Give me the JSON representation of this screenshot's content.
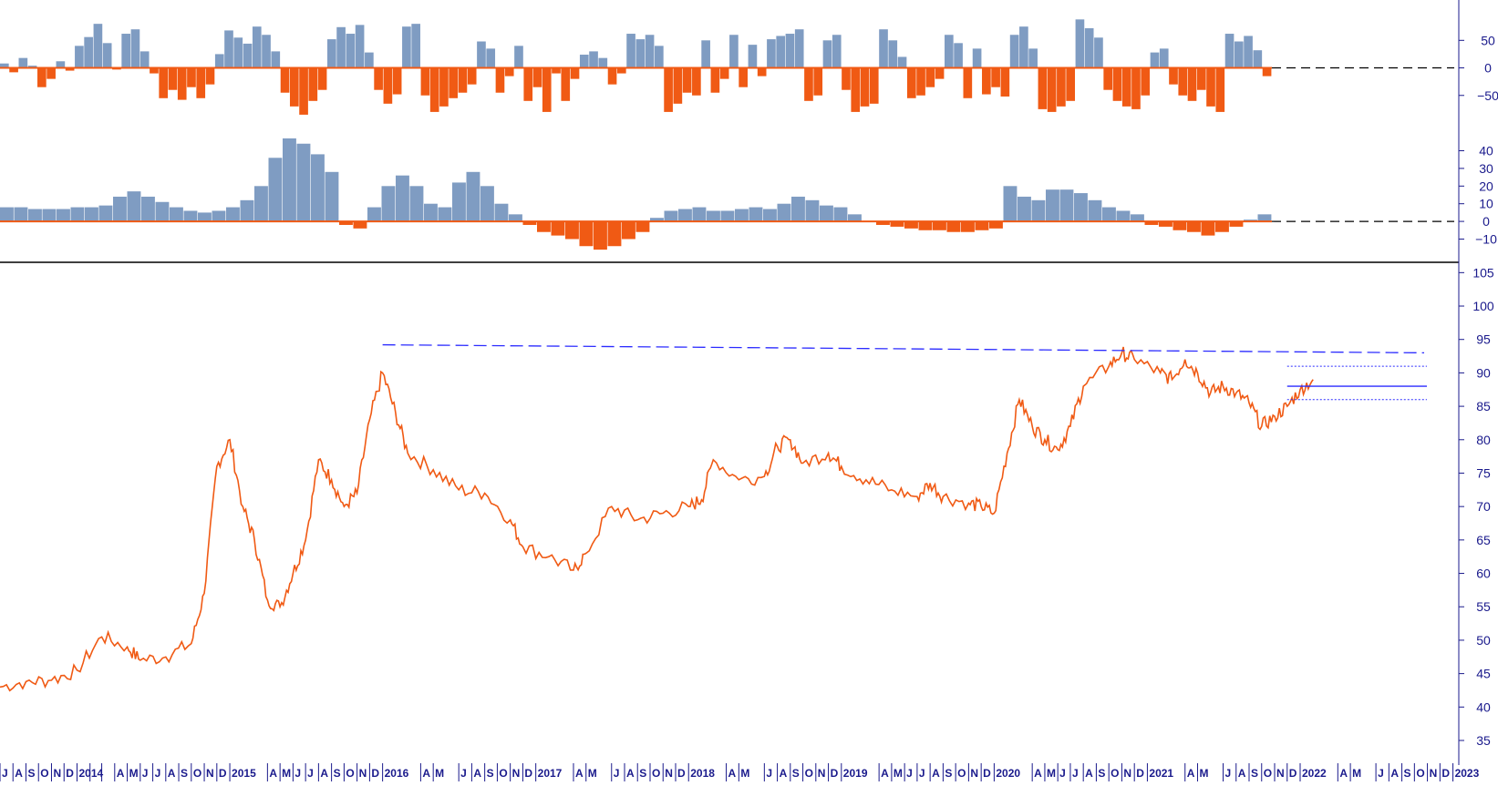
{
  "colors": {
    "positive": "#7f9cc2",
    "negative": "#f05a14",
    "price": "#f05a14",
    "axis_text": "#1a1a8c",
    "reference": "#2b2bff",
    "zero_dash": "#000000"
  },
  "chart_data": [
    {
      "type": "bar",
      "panel": "upper-oscillator",
      "ylim": [
        -100,
        115
      ],
      "yticks": [
        50,
        0,
        -50
      ],
      "tick_labels": [
        "50",
        "0",
        "−50"
      ],
      "zero_reference": 0,
      "series": [
        {
          "values": [
            8,
            -8,
            18,
            4,
            -35,
            -20,
            12,
            -5,
            40,
            56,
            80,
            45,
            -3,
            62,
            70,
            30,
            -10,
            -55,
            -40,
            -58,
            -35,
            -55,
            -30,
            25,
            68,
            55,
            44,
            75,
            60,
            30,
            -45,
            -70,
            -85,
            -60,
            -40,
            52,
            74,
            62,
            78,
            28,
            -40,
            -65,
            -48,
            75,
            80,
            -50,
            -80,
            -70,
            -55,
            -45,
            -30,
            48,
            35,
            -45,
            -15,
            40,
            -60,
            -35,
            -80,
            -10,
            -60,
            -20,
            24,
            30,
            18,
            -30,
            -10,
            62,
            52,
            60,
            40,
            -80,
            -65,
            -45,
            -50,
            50,
            -45,
            -20,
            60,
            -35,
            42,
            -15,
            52,
            58,
            62,
            70,
            -60,
            -50,
            50,
            60,
            -40,
            -80,
            -70,
            -65,
            70,
            50,
            20,
            -55,
            -50,
            -35,
            -20,
            60,
            45,
            -55,
            35,
            -48,
            -35,
            -52,
            60,
            75,
            35,
            -75,
            -80,
            -70,
            -60,
            88,
            72,
            55,
            -40,
            -60,
            -70,
            -75,
            -50,
            28,
            35,
            -30,
            -50,
            -60,
            -40,
            -70,
            -80,
            62,
            48,
            58,
            32,
            -15
          ]
        }
      ]
    },
    {
      "type": "bar",
      "panel": "middle-oscillator",
      "ylim": [
        -18,
        48
      ],
      "yticks": [
        40,
        30,
        20,
        10,
        0,
        -10
      ],
      "tick_labels": [
        "40",
        "30",
        "20",
        "10",
        "0",
        "−10"
      ],
      "zero_reference": 0,
      "series": [
        {
          "values": [
            8,
            8,
            7,
            7,
            7,
            8,
            8,
            9,
            14,
            17,
            14,
            11,
            8,
            6,
            5,
            6,
            8,
            12,
            20,
            36,
            47,
            44,
            38,
            28,
            -2,
            -4,
            8,
            20,
            26,
            20,
            10,
            8,
            22,
            28,
            20,
            10,
            4,
            -2,
            -6,
            -8,
            -10,
            -14,
            -16,
            -14,
            -10,
            -6,
            2,
            6,
            7,
            8,
            6,
            6,
            7,
            8,
            7,
            10,
            14,
            12,
            9,
            8,
            4,
            0,
            -2,
            -3,
            -4,
            -5,
            -5,
            -6,
            -6,
            -5,
            -4,
            20,
            14,
            12,
            18,
            18,
            16,
            12,
            8,
            6,
            4,
            -2,
            -3,
            -5,
            -6,
            -8,
            -6,
            -3,
            1,
            4
          ]
        }
      ]
    },
    {
      "type": "line",
      "panel": "price",
      "ylim": [
        32,
        106
      ],
      "yticks": [
        105,
        100,
        95,
        90,
        85,
        80,
        75,
        70,
        65,
        60,
        55,
        50,
        45,
        40,
        35
      ],
      "x_time_range": [
        "2013-07",
        "2023-01"
      ],
      "resistance_level": [
        94.2,
        93.0
      ],
      "current_level": 88.0,
      "band": [
        91.0,
        86.0
      ],
      "series": [
        {
          "points": [
            [
              "2013-07",
              43.0
            ],
            [
              "2013-09",
              43.8
            ],
            [
              "2013-11",
              44.0
            ],
            [
              "2014-01",
              45.5
            ],
            [
              "2014-03",
              50.5
            ],
            [
              "2014-05",
              49.0
            ],
            [
              "2014-06",
              47.0
            ],
            [
              "2014-08",
              47.5
            ],
            [
              "2014-10",
              49.5
            ],
            [
              "2014-11",
              57.0
            ],
            [
              "2014-12",
              76.0
            ],
            [
              "2015-01",
              80.0
            ],
            [
              "2015-02",
              70.0
            ],
            [
              "2015-03",
              65.0
            ],
            [
              "2015-04",
              56.0
            ],
            [
              "2015-05",
              55.0
            ],
            [
              "2015-06",
              60.0
            ],
            [
              "2015-07",
              65.0
            ],
            [
              "2015-08",
              77.0
            ],
            [
              "2015-09",
              74.0
            ],
            [
              "2015-10",
              70.0
            ],
            [
              "2015-11",
              72.0
            ],
            [
              "2015-12",
              83.0
            ],
            [
              "2016-01",
              90.0
            ],
            [
              "2016-02",
              84.0
            ],
            [
              "2016-03",
              78.0
            ],
            [
              "2016-05",
              75.5
            ],
            [
              "2016-07",
              72.5
            ],
            [
              "2016-09",
              72.0
            ],
            [
              "2016-11",
              68.0
            ],
            [
              "2016-12",
              64.0
            ],
            [
              "2017-02",
              62.5
            ],
            [
              "2017-04",
              60.5
            ],
            [
              "2017-05",
              63.0
            ],
            [
              "2017-07",
              70.0
            ],
            [
              "2017-09",
              68.0
            ],
            [
              "2017-11",
              69.0
            ],
            [
              "2018-01",
              70.0
            ],
            [
              "2018-02",
              71.0
            ],
            [
              "2018-03",
              77.0
            ],
            [
              "2018-05",
              74.0
            ],
            [
              "2018-07",
              74.5
            ],
            [
              "2018-08",
              79.0
            ],
            [
              "2018-09",
              80.0
            ],
            [
              "2018-10",
              76.5
            ],
            [
              "2018-12",
              78.0
            ],
            [
              "2019-01",
              76.0
            ],
            [
              "2019-03",
              74.0
            ],
            [
              "2019-05",
              72.5
            ],
            [
              "2019-07",
              71.5
            ],
            [
              "2019-08",
              73.5
            ],
            [
              "2019-09",
              71.5
            ],
            [
              "2019-11",
              70.5
            ],
            [
              "2019-12",
              70.0
            ],
            [
              "2020-01",
              69.0
            ],
            [
              "2020-02",
              78.0
            ],
            [
              "2020-03",
              86.0
            ],
            [
              "2020-04",
              82.0
            ],
            [
              "2020-05",
              80.0
            ],
            [
              "2020-06",
              78.5
            ],
            [
              "2020-07",
              82.0
            ],
            [
              "2020-08",
              88.0
            ],
            [
              "2020-10",
              91.0
            ],
            [
              "2020-11",
              93.0
            ],
            [
              "2020-12",
              92.0
            ],
            [
              "2021-02",
              90.0
            ],
            [
              "2021-03",
              89.0
            ],
            [
              "2021-04",
              92.0
            ],
            [
              "2021-05",
              90.0
            ],
            [
              "2021-06",
              87.0
            ],
            [
              "2021-07",
              88.0
            ],
            [
              "2021-08",
              87.0
            ],
            [
              "2021-09",
              85.5
            ],
            [
              "2021-10",
              82.0
            ],
            [
              "2021-11",
              83.5
            ],
            [
              "2021-12",
              85.0
            ],
            [
              "2022-01",
              87.5
            ],
            [
              "2022-02",
              89.0
            ]
          ]
        }
      ],
      "x_labels": [
        {
          "t": "2013-07",
          "label": "J"
        },
        {
          "t": "2013-08",
          "label": "A"
        },
        {
          "t": "2013-09",
          "label": "S"
        },
        {
          "t": "2013-10",
          "label": "O"
        },
        {
          "t": "2013-11",
          "label": "N"
        },
        {
          "t": "2013-12",
          "label": "D"
        },
        {
          "t": "2014-01",
          "label": "2014",
          "year": true
        },
        {
          "t": "2014-02",
          "label": ""
        },
        {
          "t": "2014-03",
          "label": ""
        },
        {
          "t": "2014-04",
          "label": "A"
        },
        {
          "t": "2014-05",
          "label": "M"
        },
        {
          "t": "2014-06",
          "label": "J"
        },
        {
          "t": "2014-07",
          "label": "J"
        },
        {
          "t": "2014-08",
          "label": "A"
        },
        {
          "t": "2014-09",
          "label": "S"
        },
        {
          "t": "2014-10",
          "label": "O"
        },
        {
          "t": "2014-11",
          "label": "N"
        },
        {
          "t": "2014-12",
          "label": "D"
        },
        {
          "t": "2015-01",
          "label": "2015",
          "year": true
        },
        {
          "t": "2015-04",
          "label": "A"
        },
        {
          "t": "2015-05",
          "label": "M"
        },
        {
          "t": "2015-06",
          "label": "J"
        },
        {
          "t": "2015-07",
          "label": "J"
        },
        {
          "t": "2015-08",
          "label": "A"
        },
        {
          "t": "2015-09",
          "label": "S"
        },
        {
          "t": "2015-10",
          "label": "O"
        },
        {
          "t": "2015-11",
          "label": "N"
        },
        {
          "t": "2015-12",
          "label": "D"
        },
        {
          "t": "2016-01",
          "label": "2016",
          "year": true
        },
        {
          "t": "2016-04",
          "label": "A"
        },
        {
          "t": "2016-05",
          "label": "M"
        },
        {
          "t": "2016-07",
          "label": "J"
        },
        {
          "t": "2016-08",
          "label": "A"
        },
        {
          "t": "2016-09",
          "label": "S"
        },
        {
          "t": "2016-10",
          "label": "O"
        },
        {
          "t": "2016-11",
          "label": "N"
        },
        {
          "t": "2016-12",
          "label": "D"
        },
        {
          "t": "2017-01",
          "label": "2017",
          "year": true
        },
        {
          "t": "2017-04",
          "label": "A"
        },
        {
          "t": "2017-05",
          "label": "M"
        },
        {
          "t": "2017-07",
          "label": "J"
        },
        {
          "t": "2017-08",
          "label": "A"
        },
        {
          "t": "2017-09",
          "label": "S"
        },
        {
          "t": "2017-10",
          "label": "O"
        },
        {
          "t": "2017-11",
          "label": "N"
        },
        {
          "t": "2017-12",
          "label": "D"
        },
        {
          "t": "2018-01",
          "label": "2018",
          "year": true
        },
        {
          "t": "2018-04",
          "label": "A"
        },
        {
          "t": "2018-05",
          "label": "M"
        },
        {
          "t": "2018-07",
          "label": "J"
        },
        {
          "t": "2018-08",
          "label": "A"
        },
        {
          "t": "2018-09",
          "label": "S"
        },
        {
          "t": "2018-10",
          "label": "O"
        },
        {
          "t": "2018-11",
          "label": "N"
        },
        {
          "t": "2018-12",
          "label": "D"
        },
        {
          "t": "2019-01",
          "label": "2019",
          "year": true
        },
        {
          "t": "2019-04",
          "label": "A"
        },
        {
          "t": "2019-05",
          "label": "M"
        },
        {
          "t": "2019-06",
          "label": "J"
        },
        {
          "t": "2019-07",
          "label": "J"
        },
        {
          "t": "2019-08",
          "label": "A"
        },
        {
          "t": "2019-09",
          "label": "S"
        },
        {
          "t": "2019-10",
          "label": "O"
        },
        {
          "t": "2019-11",
          "label": "N"
        },
        {
          "t": "2019-12",
          "label": "D"
        },
        {
          "t": "2020-01",
          "label": "2020",
          "year": true
        },
        {
          "t": "2020-04",
          "label": "A"
        },
        {
          "t": "2020-05",
          "label": "M"
        },
        {
          "t": "2020-06",
          "label": "J"
        },
        {
          "t": "2020-07",
          "label": "J"
        },
        {
          "t": "2020-08",
          "label": "A"
        },
        {
          "t": "2020-09",
          "label": "S"
        },
        {
          "t": "2020-10",
          "label": "O"
        },
        {
          "t": "2020-11",
          "label": "N"
        },
        {
          "t": "2020-12",
          "label": "D"
        },
        {
          "t": "2021-01",
          "label": "2021",
          "year": true
        },
        {
          "t": "2021-04",
          "label": "A"
        },
        {
          "t": "2021-05",
          "label": "M"
        },
        {
          "t": "2021-07",
          "label": "J"
        },
        {
          "t": "2021-08",
          "label": "A"
        },
        {
          "t": "2021-09",
          "label": "S"
        },
        {
          "t": "2021-10",
          "label": "O"
        },
        {
          "t": "2021-11",
          "label": "N"
        },
        {
          "t": "2021-12",
          "label": "D"
        },
        {
          "t": "2022-01",
          "label": "2022",
          "year": true
        },
        {
          "t": "2022-04",
          "label": "A"
        },
        {
          "t": "2022-05",
          "label": "M"
        },
        {
          "t": "2022-07",
          "label": "J"
        },
        {
          "t": "2022-08",
          "label": "A"
        },
        {
          "t": "2022-09",
          "label": "S"
        },
        {
          "t": "2022-10",
          "label": "O"
        },
        {
          "t": "2022-11",
          "label": "N"
        },
        {
          "t": "2022-12",
          "label": "D"
        },
        {
          "t": "2023-01",
          "label": "2023",
          "year": true
        }
      ]
    }
  ]
}
